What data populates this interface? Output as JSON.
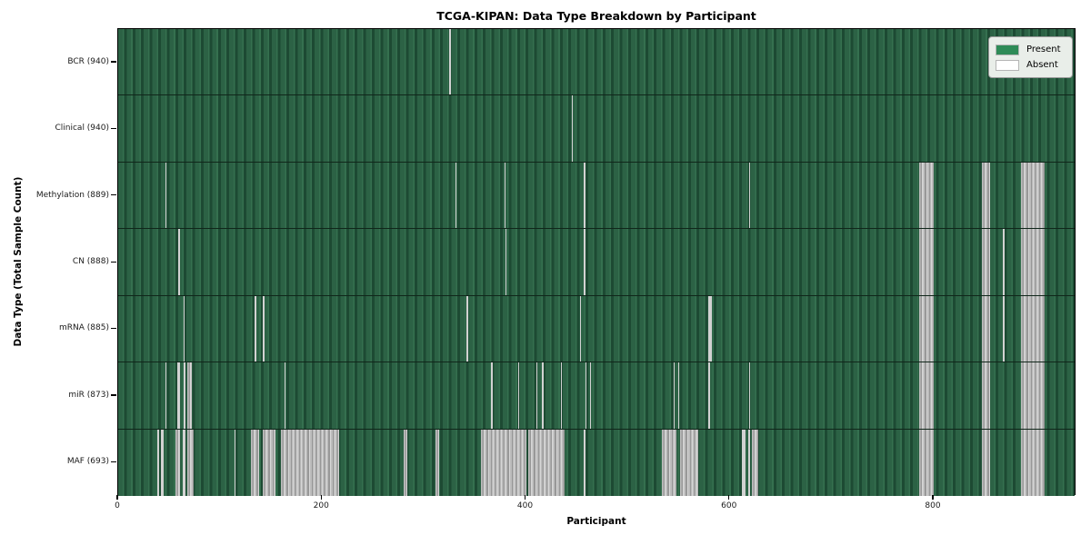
{
  "chart_data": {
    "type": "heatmap",
    "title": "TCGA-KIPAN: Data Type Breakdown by Participant",
    "xlabel": "Participant",
    "ylabel": "Data Type (Total Sample Count)",
    "x_ticks": [
      0,
      200,
      400,
      600,
      800
    ],
    "x_range": [
      0,
      940
    ],
    "grid": "row-separators-only",
    "legend_position": "upper-right",
    "colors": {
      "present": "#2e8b57",
      "absent": "#ffffff",
      "absent_rendered": "#b5b5b5"
    },
    "legend_items": [
      {
        "label": "Present",
        "color": "#2e8b57"
      },
      {
        "label": "Absent",
        "color": "#ffffff"
      }
    ],
    "rows": [
      {
        "label": "BCR (940)",
        "total_samples": 940,
        "absent_ranges": [
          [
            325,
            326
          ]
        ]
      },
      {
        "label": "Clinical (940)",
        "total_samples": 940,
        "absent_ranges": [
          [
            445,
            446
          ]
        ]
      },
      {
        "label": "Methylation (889)",
        "total_samples": 889,
        "absent_ranges": [
          [
            46,
            47
          ],
          [
            331,
            332
          ],
          [
            379,
            380
          ],
          [
            457,
            458
          ],
          [
            619,
            620
          ],
          [
            786,
            800
          ],
          [
            847,
            855
          ],
          [
            886,
            909
          ]
        ]
      },
      {
        "label": "CN (888)",
        "total_samples": 888,
        "absent_ranges": [
          [
            59,
            61
          ],
          [
            380,
            381
          ],
          [
            457,
            458
          ],
          [
            786,
            800
          ],
          [
            847,
            855
          ],
          [
            868,
            869
          ],
          [
            886,
            909
          ]
        ]
      },
      {
        "label": "mRNA (885)",
        "total_samples": 885,
        "absent_ranges": [
          [
            64,
            65
          ],
          [
            134,
            135
          ],
          [
            142,
            143
          ],
          [
            342,
            343
          ],
          [
            453,
            454
          ],
          [
            579,
            582
          ],
          [
            786,
            800
          ],
          [
            847,
            855
          ],
          [
            868,
            869
          ],
          [
            886,
            909
          ]
        ]
      },
      {
        "label": "miR (873)",
        "total_samples": 873,
        "absent_ranges": [
          [
            46,
            47
          ],
          [
            58,
            61
          ],
          [
            64,
            66
          ],
          [
            68,
            72
          ],
          [
            163,
            164
          ],
          [
            366,
            367
          ],
          [
            392,
            393
          ],
          [
            410,
            411
          ],
          [
            416,
            417
          ],
          [
            434,
            435
          ],
          [
            458,
            459
          ],
          [
            463,
            464
          ],
          [
            545,
            546
          ],
          [
            549,
            550
          ],
          [
            579,
            580
          ],
          [
            619,
            620
          ],
          [
            786,
            800
          ],
          [
            847,
            855
          ],
          [
            886,
            909
          ]
        ]
      },
      {
        "label": "MAF (693)",
        "total_samples": 693,
        "absent_ranges": [
          [
            38,
            40
          ],
          [
            42,
            45
          ],
          [
            56,
            61
          ],
          [
            63,
            66
          ],
          [
            68,
            74
          ],
          [
            114,
            115
          ],
          [
            130,
            138
          ],
          [
            142,
            154
          ],
          [
            160,
            217
          ],
          [
            280,
            284
          ],
          [
            311,
            315
          ],
          [
            356,
            400
          ],
          [
            402,
            438
          ],
          [
            457,
            458
          ],
          [
            533,
            548
          ],
          [
            551,
            569
          ],
          [
            612,
            615
          ],
          [
            618,
            620
          ],
          [
            622,
            628
          ],
          [
            786,
            800
          ],
          [
            847,
            855
          ],
          [
            886,
            909
          ]
        ]
      }
    ]
  }
}
